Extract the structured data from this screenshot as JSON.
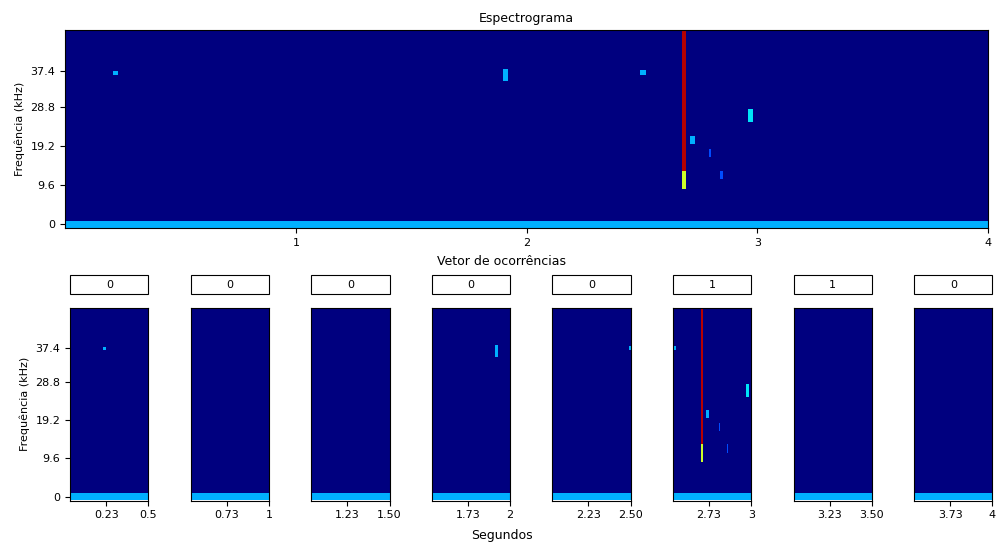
{
  "chart_data": [
    {
      "type": "spectrogram",
      "title": "Espectrograma",
      "y_label": "Frequência (kHz)",
      "xlim": [
        0,
        4
      ],
      "xticks": [
        1,
        2,
        3,
        4
      ],
      "ylim": [
        -1,
        47.5
      ],
      "yticks": [
        0,
        9.6,
        19.2,
        28.8,
        37.4
      ],
      "color_range": [
        0,
        1
      ],
      "events": [
        {
          "time": [
            0,
            4
          ],
          "frequency": [
            -1,
            0.6
          ],
          "intensity": 0.3
        },
        {
          "time": [
            2.675,
            2.69
          ],
          "frequency": [
            13,
            47.5
          ],
          "intensity": 0.95
        },
        {
          "time": [
            2.675,
            2.69
          ],
          "frequency": [
            8.5,
            13
          ],
          "intensity": 0.6
        },
        {
          "time": [
            0.21,
            0.23
          ],
          "frequency": [
            36.5,
            37.5
          ],
          "intensity": 0.3
        },
        {
          "time": [
            1.9,
            1.92
          ],
          "frequency": [
            35,
            38
          ],
          "intensity": 0.3
        },
        {
          "time": [
            2.49,
            2.52
          ],
          "frequency": [
            36.5,
            37.8
          ],
          "intensity": 0.3
        },
        {
          "time": [
            2.71,
            2.73
          ],
          "frequency": [
            19.5,
            21.5
          ],
          "intensity": 0.3
        },
        {
          "time": [
            2.79,
            2.8
          ],
          "frequency": [
            16.5,
            18.5
          ],
          "intensity": 0.2
        },
        {
          "time": [
            2.84,
            2.85
          ],
          "frequency": [
            11,
            13
          ],
          "intensity": 0.2
        },
        {
          "time": [
            2.96,
            2.98
          ],
          "frequency": [
            25,
            28
          ],
          "intensity": 0.35
        }
      ]
    },
    {
      "type": "spectrogram",
      "occurrence": 0,
      "y_label": "Frequência (kHz)",
      "xlim": [
        0,
        0.5
      ],
      "xticks": [
        0.23,
        0.5
      ],
      "ylim": [
        -1,
        47.5
      ],
      "yticks": [
        0,
        9.6,
        19.2,
        28.8,
        37.4
      ]
    },
    {
      "type": "spectrogram",
      "occurrence": 0,
      "xlim": [
        0.5,
        1
      ],
      "xticks": [
        0.73,
        1
      ],
      "ylim": [
        -1,
        47.5
      ]
    },
    {
      "type": "spectrogram",
      "occurrence": 0,
      "xlim": [
        1,
        1.5
      ],
      "xticks": [
        1.23,
        {
          "value": 1.5,
          "label": "1.50"
        }
      ],
      "ylim": [
        -1,
        47.5
      ]
    },
    {
      "type": "spectrogram",
      "occurrence": 0,
      "xlim": [
        1.5,
        2
      ],
      "xticks": [
        1.73,
        2
      ],
      "ylim": [
        -1,
        47.5
      ]
    },
    {
      "type": "spectrogram",
      "occurrence": 0,
      "xlim": [
        2,
        2.5
      ],
      "xticks": [
        2.23,
        {
          "value": 2.5,
          "label": "2.50"
        }
      ],
      "ylim": [
        -1,
        47.5
      ]
    },
    {
      "type": "spectrogram",
      "occurrence": 1,
      "xlim": [
        2.5,
        3
      ],
      "xticks": [
        2.73,
        3
      ],
      "ylim": [
        -1,
        47.5
      ]
    },
    {
      "type": "spectrogram",
      "occurrence": 1,
      "xlim": [
        3,
        3.5
      ],
      "xticks": [
        3.23,
        {
          "value": 3.5,
          "label": "3.50"
        }
      ],
      "ylim": [
        -1,
        47.5
      ]
    },
    {
      "type": "spectrogram",
      "occurrence": 0,
      "xlim": [
        3.5,
        4
      ],
      "xticks": [
        3.73,
        4
      ],
      "ylim": [
        -1,
        47.5
      ]
    }
  ],
  "occurrence_row": {
    "title": "Vetor de ocorrências",
    "x_label": "Segundos"
  }
}
